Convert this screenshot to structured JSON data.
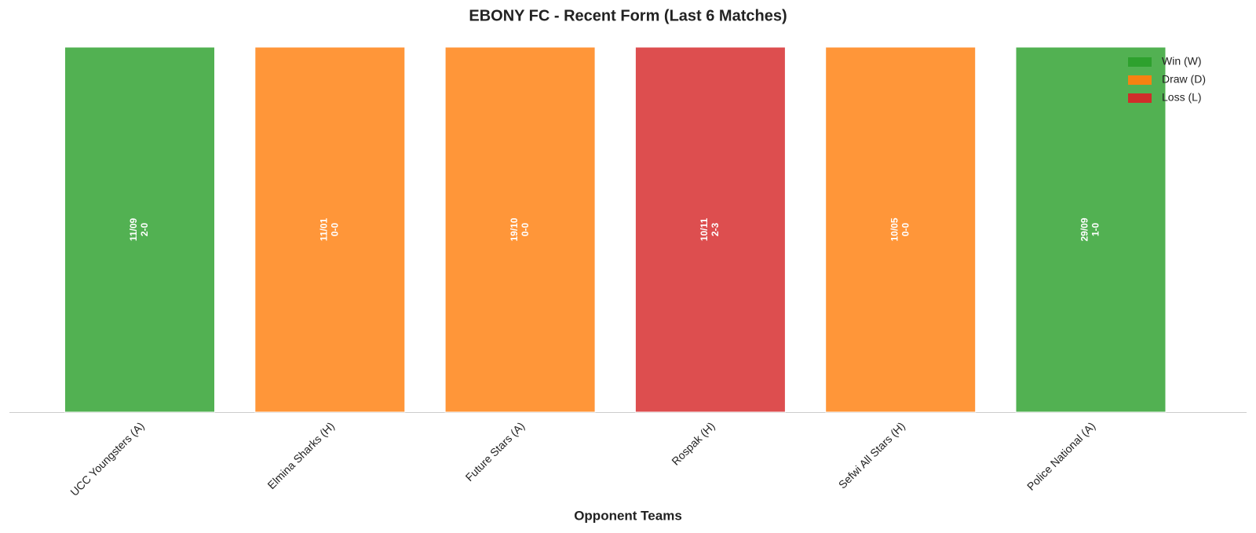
{
  "chart_data": {
    "type": "bar",
    "title": "EBONY FC - Recent Form (Last 6 Matches)",
    "xlabel": "Opponent Teams",
    "categories": [
      "UCC Youngsters (A)",
      "Elmina Sharks (H)",
      "Future Stars (A)",
      "Rospak (H)",
      "Sefwi All Stars (H)",
      "Police National (A)"
    ],
    "values": [
      1,
      1,
      1,
      1,
      1,
      1
    ],
    "colors": [
      "#2ca02c",
      "#ff7f0e",
      "#ff7f0e",
      "#d62728",
      "#ff7f0e",
      "#2ca02c"
    ],
    "dates": [
      "11/09",
      "11/01",
      "19/10",
      "10/11",
      "10/05",
      "29/09"
    ],
    "scores": [
      "2-0",
      "0-0",
      "0-0",
      "2-3",
      "0-0",
      "1-0"
    ],
    "ylim": [
      0,
      1
    ],
    "legend": [
      {
        "name": "Win (W)",
        "color": "#2ca02c"
      },
      {
        "name": "Draw (D)",
        "color": "#ff7f0e"
      },
      {
        "name": "Loss (L)",
        "color": "#d62728"
      }
    ],
    "legend_position": "upper right"
  }
}
